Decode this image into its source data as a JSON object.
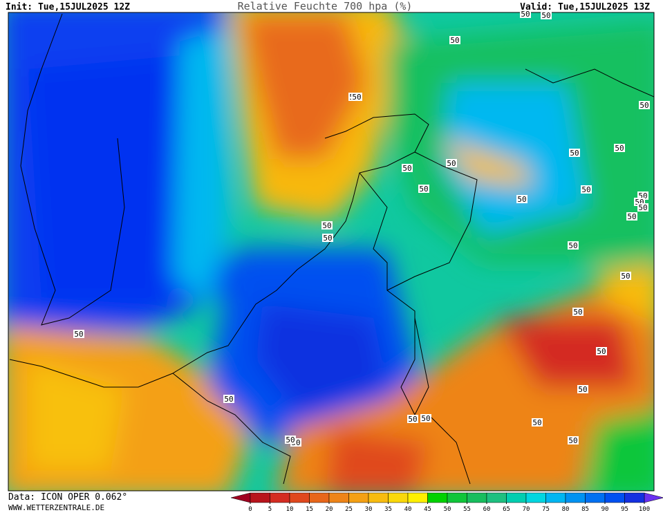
{
  "header": {
    "init": "Init: Tue,15JUL2025 12Z",
    "title": "Relative Feuchte 700 hpa (%)",
    "valid": "Valid: Tue,15JUL2025 13Z"
  },
  "footer": {
    "source": "Data: ICON OPER 0.062°",
    "url": "WWW.WETTERZENTRALE.DE"
  },
  "colorbar": {
    "ticks": [
      0,
      5,
      10,
      15,
      20,
      25,
      30,
      35,
      40,
      45,
      50,
      55,
      60,
      65,
      70,
      75,
      80,
      85,
      90,
      95,
      100
    ],
    "colors": [
      "#b8141c",
      "#d42c22",
      "#e0481e",
      "#e8661a",
      "#ee8418",
      "#f4a014",
      "#f8bc10",
      "#fad80a",
      "#fef000",
      "#00d200",
      "#10c63a",
      "#18be5e",
      "#1ec080",
      "#00ceb0",
      "#00d6e0",
      "#00b6f2",
      "#0092f2",
      "#0070f2",
      "#0050f0",
      "#1430e0"
    ],
    "under_color": "#a00020",
    "over_color": "#6a30f0"
  },
  "contour_labels": [
    "50",
    "50",
    "50",
    "50",
    "50",
    "50",
    "50",
    "50",
    "50",
    "50",
    "50",
    "50",
    "50",
    "50",
    "50",
    "50",
    "50",
    "50",
    "50",
    "50",
    "50",
    "50",
    "50",
    "50",
    "50",
    "50",
    "50",
    "50",
    "50",
    "50",
    "50",
    "50"
  ]
}
